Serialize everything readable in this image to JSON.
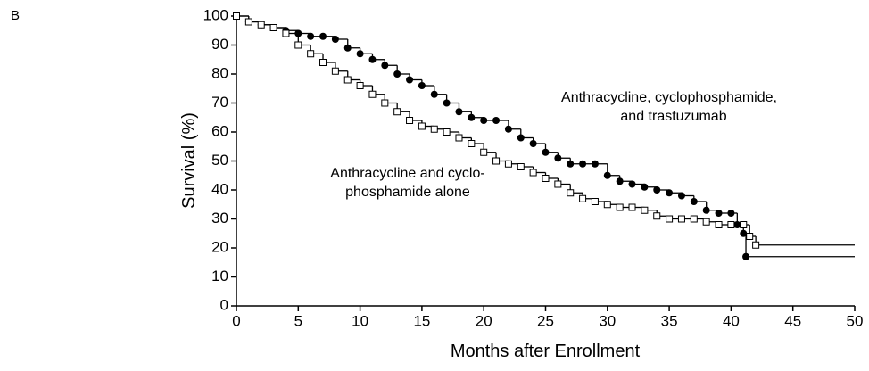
{
  "panel_label": "B",
  "chart_data": {
    "type": "step",
    "xlabel": "Months after Enrollment",
    "ylabel": "Survival (%)",
    "xlim": [
      0,
      50
    ],
    "ylim": [
      0,
      100
    ],
    "xticks": [
      0,
      5,
      10,
      15,
      20,
      25,
      30,
      35,
      40,
      45,
      50
    ],
    "yticks": [
      0,
      10,
      20,
      30,
      40,
      50,
      60,
      70,
      80,
      90,
      100
    ],
    "annotations": [
      {
        "lines": [
          "Anthracycline, cyclophosphamide,",
          "and trastuzumab"
        ]
      },
      {
        "lines": [
          "Anthracycline and cyclo-",
          "phosphamide alone"
        ]
      }
    ],
    "series": [
      {
        "marker": "circle",
        "color": "#000000",
        "x": [
          0,
          1,
          2,
          3,
          4,
          5,
          6,
          7,
          8,
          9,
          10,
          11,
          12,
          13,
          14,
          15,
          16,
          17,
          18,
          19,
          20,
          21,
          22,
          23,
          24,
          25,
          26,
          27,
          28,
          29,
          30,
          31,
          32,
          33,
          34,
          35,
          36,
          37,
          38,
          39,
          40,
          40.5,
          41,
          41.2,
          50
        ],
        "values": [
          100,
          98,
          97,
          96,
          95,
          94,
          93,
          93,
          92,
          89,
          87,
          85,
          83,
          80,
          78,
          76,
          73,
          70,
          67,
          65,
          64,
          64,
          61,
          58,
          56,
          53,
          51,
          49,
          49,
          49,
          45,
          43,
          42,
          41,
          40,
          39,
          38,
          36,
          33,
          32,
          32,
          28,
          25,
          17,
          17
        ]
      },
      {
        "marker": "square",
        "color": "#000000",
        "x": [
          0,
          1,
          2,
          3,
          4,
          5,
          6,
          7,
          8,
          9,
          10,
          11,
          12,
          13,
          14,
          15,
          16,
          17,
          18,
          19,
          20,
          21,
          22,
          23,
          24,
          25,
          26,
          27,
          28,
          29,
          30,
          31,
          32,
          33,
          34,
          35,
          36,
          37,
          38,
          39,
          40,
          41,
          41.5,
          42,
          50
        ],
        "values": [
          100,
          98,
          97,
          96,
          94,
          90,
          87,
          84,
          81,
          78,
          76,
          73,
          70,
          67,
          64,
          62,
          61,
          60,
          58,
          56,
          53,
          50,
          49,
          48,
          46,
          44,
          42,
          39,
          37,
          36,
          35,
          34,
          34,
          33,
          31,
          30,
          30,
          30,
          29,
          28,
          28,
          28,
          24,
          21,
          21
        ]
      }
    ]
  }
}
